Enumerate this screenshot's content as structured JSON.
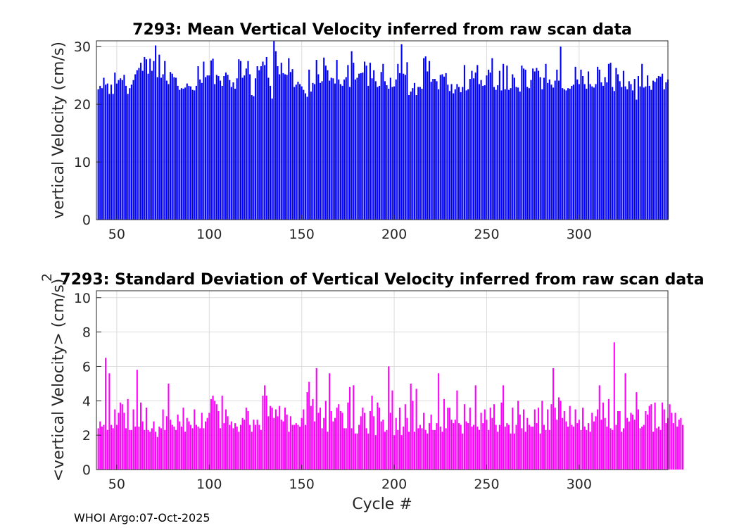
{
  "footer": "WHOI Argo:07-Oct-2025",
  "chart_data": [
    {
      "type": "bar",
      "title": "7293: Mean Vertical Velocity inferred from raw scan data",
      "xlabel": "",
      "ylabel": "vertical Velocity (cm/s)",
      "xlim": [
        39,
        348
      ],
      "ylim": [
        0,
        31
      ],
      "xticks": [
        50,
        100,
        150,
        200,
        250,
        300
      ],
      "yticks": [
        0,
        10,
        20,
        30
      ],
      "color": "#0000ff",
      "x_start": 40,
      "values": [
        22.6,
        23.2,
        22.8,
        24.6,
        23.4,
        23.6,
        21.8,
        23.4,
        21.8,
        25.5,
        23.6,
        24.2,
        24.5,
        24.2,
        25.1,
        23.2,
        21.8,
        22.8,
        23.4,
        24.2,
        25.2,
        25.9,
        26.3,
        27.2,
        25.8,
        28.2,
        27.8,
        25.3,
        27.9,
        25.8,
        27.5,
        30.2,
        24.7,
        28.6,
        24.6,
        25.2,
        27.5,
        24.1,
        23.5,
        25.6,
        25.3,
        24.7,
        24.6,
        23.2,
        22.5,
        22.8,
        22.7,
        22.9,
        23.6,
        23.2,
        23.1,
        22.5,
        22.4,
        23.2,
        26.6,
        24.3,
        23.7,
        27.4,
        24.7,
        25.0,
        25.0,
        27.6,
        27.9,
        23.5,
        25.1,
        24.9,
        24.1,
        23.2,
        24.9,
        25.5,
        25.1,
        24.2,
        23.0,
        23.8,
        22.7,
        24.5,
        27.8,
        27.5,
        24.6,
        25.0,
        26.2,
        27.5,
        25.2,
        21.6,
        21.4,
        24.5,
        26.6,
        25.9,
        26.6,
        27.4,
        26.8,
        28.2,
        24.6,
        23.2,
        21.0,
        31.0,
        29.2,
        26.6,
        25.2,
        27.2,
        25.4,
        25.2,
        25.1,
        28.0,
        25.6,
        26.1,
        23.0,
        23.4,
        23.9,
        23.5,
        23.1,
        22.5,
        21.9,
        21.3,
        26.0,
        22.2,
        23.7,
        23.5,
        27.7,
        25.2,
        23.7,
        24.0,
        28.1,
        26.7,
        25.9,
        24.1,
        24.6,
        24.5,
        23.6,
        27.7,
        24.3,
        23.5,
        23.2,
        24.3,
        24.7,
        26.8,
        23.0,
        29.2,
        27.2,
        24.3,
        24.6,
        25.3,
        25.4,
        25.5,
        27.4,
        26.7,
        23.2,
        27.2,
        24.5,
        25.9,
        24.0,
        23.0,
        23.2,
        25.6,
        27.0,
        24.0,
        23.3,
        22.7,
        24.6,
        23.0,
        23.1,
        24.3,
        27.0,
        25.4,
        30.4,
        25.3,
        25.1,
        27.3,
        21.6,
        22.2,
        22.8,
        23.7,
        21.6,
        23.0,
        23.0,
        22.7,
        28.0,
        28.3,
        25.7,
        27.5,
        23.9,
        24.4,
        24.4,
        24.0,
        22.6,
        25.1,
        25.2,
        24.8,
        25.4,
        23.4,
        22.3,
        23.5,
        21.9,
        22.6,
        23.5,
        23.0,
        22.1,
        23.0,
        26.8,
        22.4,
        22.6,
        24.4,
        25.8,
        24.5,
        25.5,
        26.8,
        23.5,
        24.2,
        23.2,
        23.3,
        25.0,
        26.0,
        25.5,
        28.0,
        23.0,
        22.5,
        23.3,
        25.8,
        22.4,
        27.0,
        22.6,
        26.7,
        22.5,
        22.8,
        25.2,
        24.6,
        23.0,
        22.9,
        22.2,
        26.7,
        26.2,
        26.0,
        23.0,
        22.8,
        24.2,
        26.2,
        25.7,
        26.3,
        25.8,
        24.7,
        22.6,
        24.6,
        27.0,
        23.7,
        24.3,
        23.4,
        22.9,
        24.1,
        26.0,
        24.1,
        30.0,
        22.8,
        22.6,
        22.4,
        22.8,
        22.7,
        23.2,
        23.4,
        26.5,
        24.3,
        23.5,
        26.0,
        24.9,
        23.5,
        22.7,
        25.7,
        23.5,
        23.1,
        22.9,
        23.5,
        26.5,
        26.0,
        23.8,
        23.2,
        24.7,
        23.8,
        27.0,
        27.2,
        23.0,
        22.3,
        26.3,
        25.2,
        24.0,
        23.0,
        25.8,
        23.1,
        22.6,
        24.0,
        23.5,
        22.4,
        24.4,
        20.8,
        24.9,
        23.1,
        27.0,
        22.9,
        23.1,
        25.0,
        23.2,
        22.5,
        24.1,
        23.9,
        24.5,
        24.9,
        24.8,
        25.3,
        22.6,
        23.8,
        24.3
      ]
    },
    {
      "type": "bar",
      "title": "7293: Standard Deviation of Vertical Velocity inferred from raw scan data",
      "xlabel": "Cycle #",
      "ylabel": "<vertical Velocity> (cm/s)",
      "ylabel_superscript": "2",
      "xlim": [
        39,
        348
      ],
      "ylim": [
        0,
        10.4
      ],
      "xticks": [
        50,
        100,
        150,
        200,
        250,
        300
      ],
      "yticks": [
        0,
        2,
        4,
        6,
        8,
        10
      ],
      "color": "#ff00ff",
      "x_start": 40,
      "values": [
        2.4,
        2.8,
        2.5,
        2.6,
        6.5,
        2.3,
        5.6,
        2.6,
        2.4,
        3.5,
        2.6,
        3.3,
        3.9,
        3.8,
        3.3,
        2.4,
        4.1,
        2.3,
        2.3,
        3.5,
        2.5,
        5.8,
        2.5,
        3.9,
        2.8,
        2.3,
        3.6,
        2.3,
        2.2,
        2.4,
        2.8,
        2.2,
        1.9,
        2.5,
        2.4,
        3.5,
        2.3,
        3.1,
        5.0,
        2.9,
        2.6,
        2.5,
        2.3,
        3.2,
        2.8,
        2.5,
        3.6,
        2.2,
        3.0,
        2.8,
        2.6,
        2.4,
        3.5,
        2.6,
        2.5,
        2.4,
        3.3,
        2.4,
        2.8,
        3.0,
        3.3,
        4.1,
        4.3,
        4.0,
        3.8,
        3.4,
        2.4,
        4.3,
        2.7,
        3.5,
        3.1,
        2.6,
        2.8,
        2.4,
        2.7,
        2.5,
        2.2,
        2.6,
        3.0,
        2.9,
        3.6,
        3.4,
        2.6,
        2.2,
        2.9,
        2.6,
        2.9,
        2.6,
        2.3,
        4.3,
        4.9,
        4.3,
        3.1,
        3.7,
        3.6,
        3.0,
        3.5,
        3.1,
        3.7,
        2.9,
        2.8,
        3.6,
        3.2,
        2.2,
        3.1,
        2.6,
        2.6,
        2.7,
        2.6,
        2.5,
        3.0,
        3.5,
        2.6,
        4.5,
        5.1,
        3.7,
        4.1,
        2.8,
        5.9,
        3.3,
        3.6,
        2.4,
        3.0,
        4.0,
        2.2,
        5.6,
        3.4,
        2.8,
        3.0,
        3.6,
        3.8,
        3.4,
        3.3,
        2.4,
        2.4,
        3.9,
        4.8,
        2.4,
        4.9,
        2.1,
        2.1,
        2.6,
        3.1,
        3.6,
        3.3,
        2.4,
        2.1,
        3.4,
        4.3,
        3.1,
        2.0,
        3.9,
        3.6,
        2.8,
        2.9,
        2.2,
        2.3,
        6.0,
        3.3,
        4.6,
        2.0,
        3.0,
        2.3,
        3.6,
        2.0,
        2.5,
        3.8,
        3.0,
        2.2,
        5.0,
        4.0,
        2.2,
        4.7,
        2.4,
        2.6,
        2.4,
        3.3,
        2.3,
        2.1,
        2.7,
        3.2,
        2.3,
        2.3,
        2.7,
        5.6,
        2.5,
        2.2,
        4.1,
        2.4,
        3.6,
        3.6,
        2.9,
        2.7,
        2.9,
        4.6,
        2.7,
        2.6,
        2.1,
        3.8,
        2.8,
        2.7,
        3.6,
        2.5,
        2.6,
        4.9,
        2.5,
        2.3,
        3.3,
        2.7,
        3.5,
        2.9,
        2.3,
        3.6,
        3.0,
        3.8,
        2.6,
        2.2,
        2.6,
        3.9,
        4.9,
        2.5,
        2.7,
        2.6,
        2.1,
        3.6,
        2.1,
        2.6,
        4.0,
        3.2,
        2.4,
        3.5,
        2.2,
        3.0,
        2.6,
        2.5,
        2.5,
        3.5,
        2.7,
        3.6,
        2.1,
        4.0,
        2.6,
        2.3,
        3.5,
        2.3,
        3.8,
        5.9,
        3.6,
        2.9,
        4.2,
        4.0,
        3.0,
        3.4,
        2.8,
        2.5,
        3.7,
        2.6,
        2.5,
        3.5,
        2.7,
        2.9,
        2.3,
        3.6,
        2.5,
        2.3,
        2.7,
        2.2,
        3.3,
        2.8,
        3.1,
        3.5,
        4.9,
        2.9,
        3.9,
        3.0,
        2.5,
        4.1,
        2.4,
        2.3,
        7.4,
        2.6,
        3.4,
        3.4,
        2.2,
        2.4,
        5.6,
        3.0,
        2.8,
        3.3,
        3.2,
        2.9,
        4.5,
        3.5,
        2.4,
        2.5,
        2.6,
        3.4,
        3.2,
        3.7,
        3.8,
        2.2,
        3.9,
        2.4,
        2.5,
        2.3,
        3.9,
        3.5,
        2.7,
        3.0,
        3.8,
        3.3,
        2.7,
        3.3,
        2.5,
        2.9,
        3.0,
        2.6
      ]
    }
  ]
}
